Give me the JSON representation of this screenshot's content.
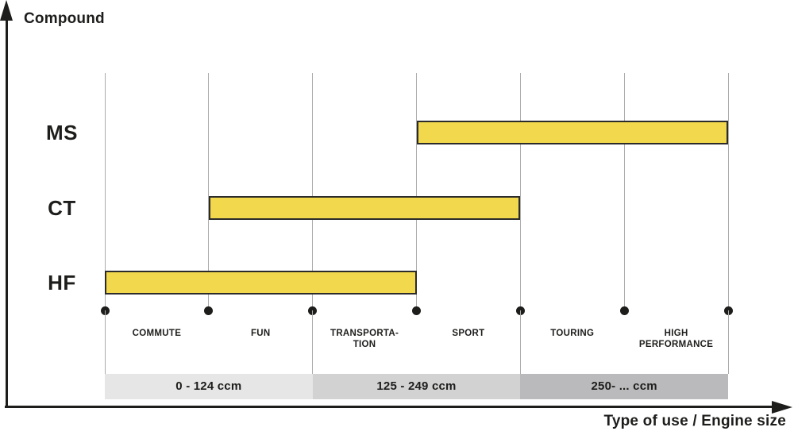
{
  "colors": {
    "ink": "#1D1D1B",
    "bar_fill": "#F2D84C",
    "bar_border": "#2B2B2B",
    "gridline": "#ABABAB"
  },
  "chart_data": {
    "type": "bar",
    "variant": "horizontal-range",
    "title": "",
    "ylabel": "Compound",
    "xlabel": "Type of use / Engine size",
    "grid": "vertical-only",
    "legend": "none",
    "x_stop_count": 7,
    "categories": [
      "COMMUTE",
      "FUN",
      "TRANSPORTA-\nTION",
      "SPORT",
      "TOURING",
      "HIGH\nPERFORMANCE"
    ],
    "series": [
      {
        "name": "MS",
        "start_stop": 3,
        "end_stop": 6,
        "covers": [
          "SPORT",
          "TOURING",
          "HIGH PERFORMANCE"
        ]
      },
      {
        "name": "CT",
        "start_stop": 1,
        "end_stop": 4,
        "covers": [
          "FUN",
          "TRANSPORTATION",
          "SPORT"
        ]
      },
      {
        "name": "HF",
        "start_stop": 0,
        "end_stop": 3,
        "covers": [
          "COMMUTE",
          "FUN",
          "TRANSPORTATION"
        ]
      }
    ],
    "engine_size_bands": [
      {
        "label": "0 - 124 ccm",
        "start_stop": 0,
        "end_stop": 2,
        "fill": "#E6E6E6"
      },
      {
        "label": "125 - 249 ccm",
        "start_stop": 2,
        "end_stop": 4,
        "fill": "#D2D2D3"
      },
      {
        "label": "250- ... ccm",
        "start_stop": 4,
        "end_stop": 6,
        "fill": "#BABABC"
      }
    ],
    "band_separator_stops": [
      0,
      2,
      4,
      6
    ]
  }
}
